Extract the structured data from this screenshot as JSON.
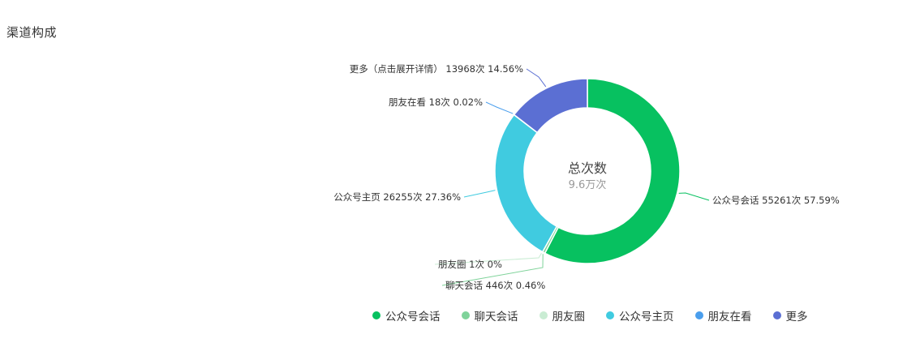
{
  "page": {
    "section_title": "渠道构成"
  },
  "chart_data": {
    "type": "pie",
    "subtype": "donut",
    "center": {
      "title": "总次数",
      "value": "9.6万次"
    },
    "slices": [
      {
        "name": "公众号会话",
        "count": 55261,
        "percent": 57.59,
        "color": "#07c160",
        "label": "公众号会话 55261次 57.59%"
      },
      {
        "name": "聊天会话",
        "count": 446,
        "percent": 0.46,
        "color": "#7fd39a",
        "label": "聊天会话 446次 0.46%"
      },
      {
        "name": "朋友圈",
        "count": 1,
        "percent": 0,
        "color": "#c9ecd3",
        "label": "朋友圈 1次 0%"
      },
      {
        "name": "公众号主页",
        "count": 26255,
        "percent": 27.36,
        "color": "#40cbe0",
        "label": "公众号主页 26255次 27.36%"
      },
      {
        "name": "朋友在看",
        "count": 18,
        "percent": 0.02,
        "color": "#4a9eed",
        "label": "朋友在看 18次 0.02%"
      },
      {
        "name": "更多",
        "count": 13968,
        "percent": 14.56,
        "color": "#5b6fd3",
        "label": "更多（点击展开详情） 13968次 14.56%"
      }
    ],
    "legend": [
      "公众号会话",
      "聊天会话",
      "朋友圈",
      "公众号主页",
      "朋友在看",
      "更多"
    ],
    "legend_position": "bottom"
  }
}
